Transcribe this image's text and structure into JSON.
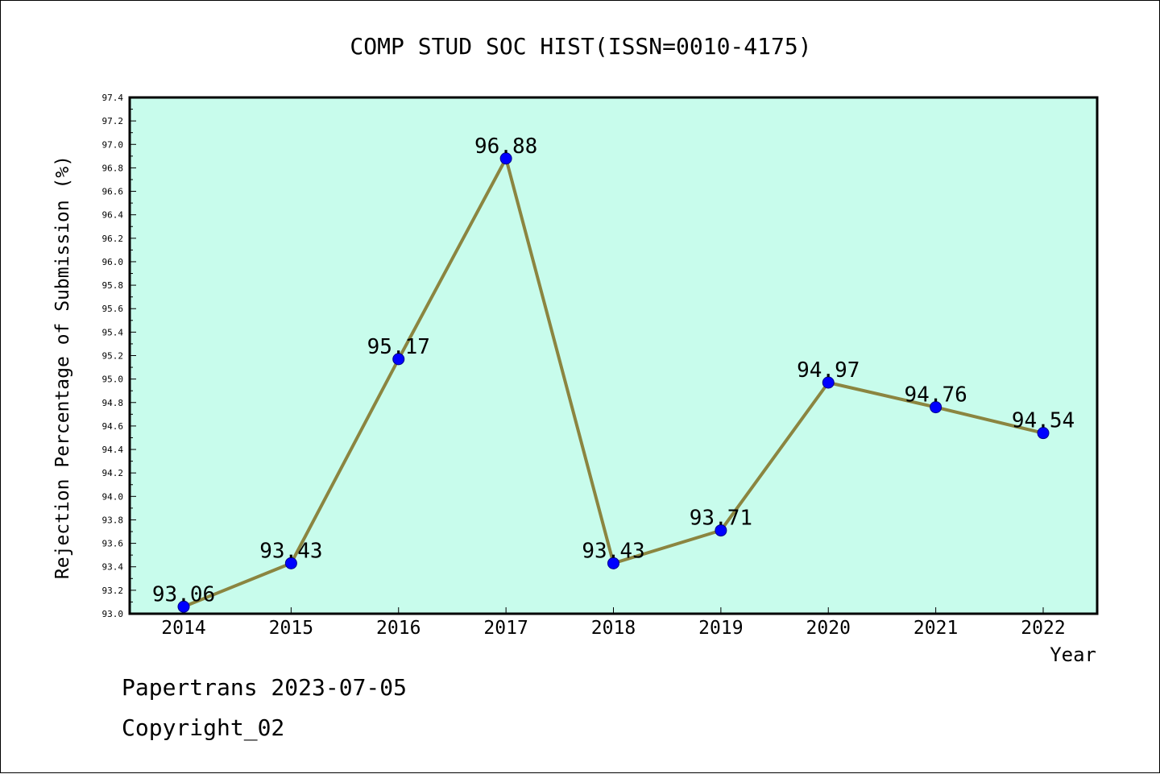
{
  "chart_data": {
    "type": "line",
    "title": "COMP STUD SOC HIST(ISSN=0010-4175)",
    "xlabel": "Year",
    "ylabel": "Rejection Percentage of Submission (%)",
    "categories": [
      "2014",
      "2015",
      "2016",
      "2017",
      "2018",
      "2019",
      "2020",
      "2021",
      "2022"
    ],
    "values": [
      93.06,
      93.43,
      95.17,
      96.88,
      93.43,
      93.71,
      94.97,
      94.76,
      94.54
    ],
    "data_labels": [
      "93.06",
      "93.43",
      "95.17",
      "96.88",
      "93.43",
      "93.71",
      "94.97",
      "94.76",
      "94.54"
    ],
    "ylim": [
      93.0,
      97.4
    ],
    "yticks": [
      "93.0",
      "93.2",
      "93.4",
      "93.6",
      "93.8",
      "94.0",
      "94.2",
      "94.4",
      "94.6",
      "94.8",
      "95.0",
      "95.2",
      "95.4",
      "95.6",
      "95.8",
      "96.0",
      "96.2",
      "96.4",
      "96.6",
      "96.8",
      "97.0",
      "97.2",
      "97.4"
    ],
    "grid": false,
    "colors": {
      "plot_background": "#c8fcec",
      "line": "#8b8540",
      "marker": "#0000ff",
      "text": "#000000"
    }
  },
  "footer": {
    "date_text": "Papertrans 2023-07-05",
    "copyright_text": "Copyright_02"
  }
}
